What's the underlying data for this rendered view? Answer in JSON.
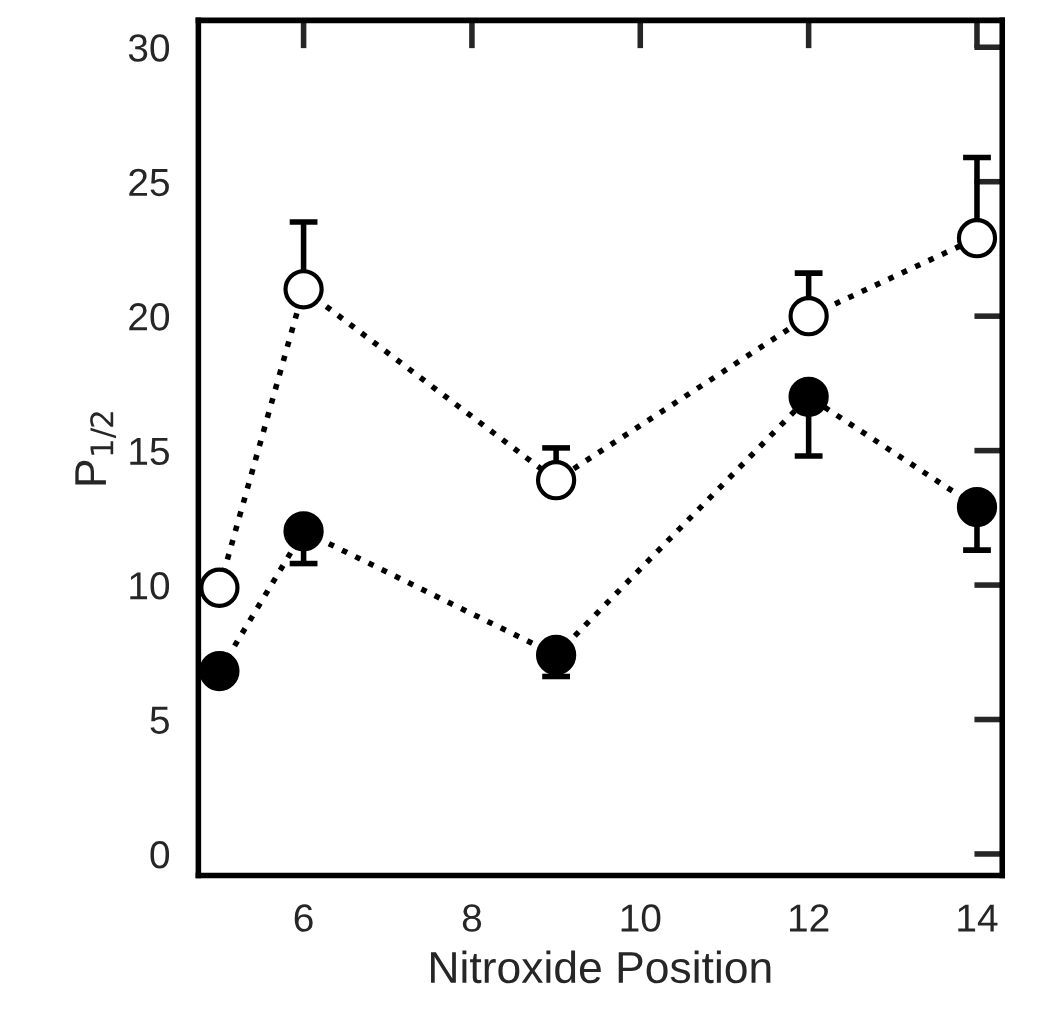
{
  "chart_data": {
    "type": "line",
    "xlabel": "Nitroxide Position",
    "ylabel": "P$_{1/2}$",
    "x": [
      5,
      6,
      9,
      12,
      14
    ],
    "series": [
      {
        "color": "#ffffff",
        "values": [
          9.9,
          21,
          13.9,
          20,
          22.9
        ],
        "errors": [
          null,
          [
            21,
            23.5
          ],
          [
            13.9,
            15.1
          ],
          [
            20,
            21.6
          ],
          [
            22.9,
            25.9
          ]
        ]
      },
      {
        "color": "#000000",
        "values": [
          6.8,
          12,
          7.4,
          17,
          12.9
        ],
        "errors": [
          null,
          [
            10.8,
            12
          ],
          [
            6.6,
            7.4
          ],
          [
            14.8,
            17
          ],
          [
            11.3,
            12.9
          ]
        ]
      }
    ],
    "xlim": [
      4.75,
      14.3
    ],
    "ylim": [
      -0.8,
      31
    ],
    "xticks": [
      6,
      8,
      10,
      12,
      14
    ],
    "yticks": [
      0,
      5,
      10,
      15,
      20,
      25,
      30
    ],
    "marker": "circle",
    "line_style": "dotted",
    "grid": false,
    "legend": false
  }
}
